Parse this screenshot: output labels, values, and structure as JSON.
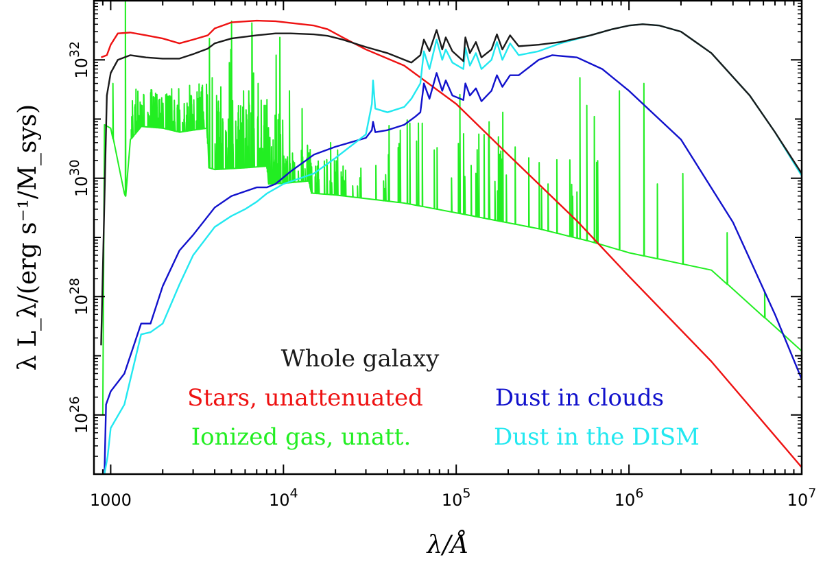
{
  "chart_data": {
    "type": "line",
    "title": "",
    "xlabel": "λ/Å",
    "ylabel": "λ L_λ/(erg s⁻¹/M_sys)",
    "x_scale": "log",
    "y_scale": "log",
    "xlim": [
      800,
      10000000
    ],
    "ylim": [
      1e+25,
      1e+33
    ],
    "grid": false,
    "x_ticks": [
      {
        "value": 1000,
        "base": "1000",
        "exp": ""
      },
      {
        "value": 10000,
        "base": "10",
        "exp": "4"
      },
      {
        "value": 100000,
        "base": "10",
        "exp": "5"
      },
      {
        "value": 1000000,
        "base": "10",
        "exp": "6"
      },
      {
        "value": 10000000,
        "base": "10",
        "exp": "7"
      }
    ],
    "y_ticks": [
      {
        "value": 1e+26,
        "base": "10",
        "exp": "26"
      },
      {
        "value": 1e+28,
        "base": "10",
        "exp": "28"
      },
      {
        "value": 1e+30,
        "base": "10",
        "exp": "30"
      },
      {
        "value": 1e+32,
        "base": "10",
        "exp": "32"
      }
    ],
    "legend": {
      "placement": "bottom-center",
      "entries": [
        {
          "label": "Whole galaxy",
          "color": "#1a1a1a"
        },
        {
          "label": "Stars, unattenuated",
          "color": "#ee1111"
        },
        {
          "label": "Dust in clouds",
          "color": "#1111cc"
        },
        {
          "label": "Ionized gas, unatt.",
          "color": "#22ee22"
        },
        {
          "label": "Dust in the DISM",
          "color": "#22e8f0"
        }
      ]
    },
    "series": [
      {
        "color": "#ee1111",
        "points": [
          [
            880,
            1.1e+32
          ],
          [
            950,
            1.2e+32
          ],
          [
            1000,
            1.8e+32
          ],
          [
            1100,
            2.8e+32
          ],
          [
            1300,
            2.9e+32
          ],
          [
            1600,
            2.6e+32
          ],
          [
            2000,
            2.3e+32
          ],
          [
            2500,
            1.9e+32
          ],
          [
            3000,
            2.2e+32
          ],
          [
            3650,
            2.6e+32
          ],
          [
            4000,
            3.4e+32
          ],
          [
            5000,
            4.3e+32
          ],
          [
            7000,
            4.6e+32
          ],
          [
            9000,
            4.5e+32
          ],
          [
            11000,
            4.2e+32
          ],
          [
            15000,
            3.8e+32
          ],
          [
            18000,
            3.3e+32
          ],
          [
            22000,
            2.4e+32
          ],
          [
            30000,
            1.5e+32
          ],
          [
            50000,
            8e+31
          ],
          [
            100000,
            1.8e+31
          ],
          [
            200000,
            2.5e+30
          ],
          [
            500000,
            1.9e+29
          ],
          [
            1000000,
            2.2e+28
          ],
          [
            3000000,
            8e+26
          ],
          [
            10000000,
            1.3e+25
          ]
        ]
      },
      {
        "color": "#1a1a1a",
        "points": [
          [
            880,
            1.5e+27
          ],
          [
            950,
            2.5e+31
          ],
          [
            1000,
            6e+31
          ],
          [
            1100,
            1e+32
          ],
          [
            1300,
            1.2e+32
          ],
          [
            1600,
            1.1e+32
          ],
          [
            2000,
            1.05e+32
          ],
          [
            2500,
            1.05e+32
          ],
          [
            3000,
            1.25e+32
          ],
          [
            3650,
            1.55e+32
          ],
          [
            4000,
            1.9e+32
          ],
          [
            5000,
            2.3e+32
          ],
          [
            7000,
            2.6e+32
          ],
          [
            9000,
            2.8e+32
          ],
          [
            11000,
            2.8e+32
          ],
          [
            15000,
            2.7e+32
          ],
          [
            18000,
            2.55e+32
          ],
          [
            22000,
            2.2e+32
          ],
          [
            30000,
            1.65e+32
          ],
          [
            40000,
            1.3e+32
          ],
          [
            55000,
            9e+31
          ],
          [
            62000,
            1.2e+32
          ],
          [
            65000,
            2.2e+32
          ],
          [
            70000,
            1.4e+32
          ],
          [
            77000,
            3.2e+32
          ],
          [
            83000,
            1.5e+32
          ],
          [
            87000,
            2.4e+32
          ],
          [
            95000,
            1.4e+32
          ],
          [
            110000,
            9.5e+31
          ],
          [
            113000,
            2.4e+32
          ],
          [
            120000,
            1.3e+32
          ],
          [
            130000,
            2e+32
          ],
          [
            140000,
            1.1e+32
          ],
          [
            160000,
            1.5e+32
          ],
          [
            172000,
            2.7e+32
          ],
          [
            185000,
            1.5e+32
          ],
          [
            205000,
            2.6e+32
          ],
          [
            230000,
            1.7e+32
          ],
          [
            300000,
            1.8e+32
          ],
          [
            400000,
            2e+32
          ],
          [
            600000,
            2.6e+32
          ],
          [
            800000,
            3.3e+32
          ],
          [
            1000000,
            3.8e+32
          ],
          [
            1200000,
            4e+32
          ],
          [
            1500000,
            3.8e+32
          ],
          [
            2000000,
            3e+32
          ],
          [
            3000000,
            1.3e+32
          ],
          [
            5000000,
            2.5e+31
          ],
          [
            7000000,
            6e+30
          ],
          [
            10000000,
            1.2e+30
          ]
        ]
      },
      {
        "color": "#22ee22",
        "points": [
          [
            900,
            1e+26
          ],
          [
            920,
            8e+30
          ],
          [
            1000,
            7e+30
          ],
          [
            1200,
            5.5e+29
          ],
          [
            1216,
            5e+29
          ],
          [
            1300,
            4.5e+30
          ],
          [
            1500,
            7.5e+30
          ],
          [
            2000,
            7e+30
          ],
          [
            2500,
            6e+30
          ],
          [
            3000,
            6.5e+30
          ],
          [
            3600,
            7e+30
          ],
          [
            3700,
            1.5e+30
          ],
          [
            4000,
            1.4e+30
          ],
          [
            6000,
            1.5e+30
          ],
          [
            8000,
            1.6e+30
          ],
          [
            8200,
            8e+29
          ],
          [
            10000,
            8.2e+29
          ],
          [
            14000,
            9e+29
          ],
          [
            14500,
            5.6e+29
          ],
          [
            20000,
            5.2e+29
          ],
          [
            50000,
            3.8e+29
          ],
          [
            100000,
            2.6e+29
          ],
          [
            300000,
            1.4e+29
          ],
          [
            600000,
            8.5e+28
          ],
          [
            1000000,
            5.5e+28
          ],
          [
            3000000,
            2.8e+28
          ],
          [
            10000000,
            1.2e+27
          ]
        ],
        "lines": [
          [
            1216,
            3e+33
          ],
          [
            1030,
            4e+31
          ],
          [
            1400,
            1.6e+31
          ],
          [
            1550,
            2.6e+31
          ],
          [
            1640,
            1.3e+31
          ],
          [
            1900,
            2.1e+31
          ],
          [
            2330,
            1.4e+31
          ],
          [
            2800,
            1.6e+31
          ],
          [
            3727,
            2.3e+32
          ],
          [
            3870,
            5e+31
          ],
          [
            4102,
            2.5e+31
          ],
          [
            4340,
            3.5e+31
          ],
          [
            4861,
            9e+31
          ],
          [
            4959,
            1.5e+32
          ],
          [
            5007,
            4.5e+32
          ],
          [
            5876,
            3e+31
          ],
          [
            6300,
            3e+31
          ],
          [
            6563,
            4.2e+32
          ],
          [
            6584,
            3e+32
          ],
          [
            6717,
            6e+31
          ],
          [
            7136,
            4e+31
          ],
          [
            9069,
            1.2e+32
          ],
          [
            9532,
            2.4e+32
          ],
          [
            10830,
            3e+31
          ],
          [
            12820,
            1.5e+31
          ],
          [
            18750,
            4e+30
          ],
          [
            20580,
            3e+30
          ],
          [
            40510,
            2.5e+30
          ],
          [
            74600,
            3e+30
          ],
          [
            105000,
            2.6e+31
          ],
          [
            155000,
            9e+30
          ],
          [
            186000,
            1.3e+31
          ],
          [
            340000,
            8e+29
          ],
          [
            520000,
            5e+31
          ],
          [
            570000,
            1.7e+31
          ],
          [
            630000,
            1.1e+31
          ],
          [
            880000,
            3e+31
          ],
          [
            1220000,
            4e+31
          ],
          [
            1460000,
            8e+29
          ],
          [
            2050000,
            1.2e+30
          ],
          [
            3700000,
            1.2e+29
          ],
          [
            6100000,
            1.2e+28
          ]
        ],
        "forest": [
          {
            "from": 1300,
            "to": 3650,
            "count": 110,
            "peak_min": 1.4,
            "peak_max": 6
          },
          {
            "from": 4000,
            "to": 10000,
            "count": 90,
            "peak_min": 2,
            "peak_max": 15
          },
          {
            "from": 10000,
            "to": 14500,
            "count": 30,
            "peak_min": 1.5,
            "peak_max": 6
          },
          {
            "from": 14500,
            "to": 40000,
            "count": 35,
            "peak_min": 1.5,
            "peak_max": 4
          },
          {
            "from": 40000,
            "to": 200000,
            "count": 30,
            "peak_min": 3,
            "peak_max": 30
          },
          {
            "from": 200000,
            "to": 700000,
            "count": 12,
            "peak_min": 3,
            "peak_max": 30
          }
        ]
      },
      {
        "color": "#1111cc",
        "points": [
          [
            920,
            1e+25
          ],
          [
            940,
            1.5e+26
          ],
          [
            1000,
            2.5e+26
          ],
          [
            1200,
            5e+26
          ],
          [
            1500,
            3.5e+27
          ],
          [
            1700,
            3.5e+27
          ],
          [
            2000,
            1.5e+28
          ],
          [
            2500,
            6e+28
          ],
          [
            3000,
            1.1e+29
          ],
          [
            4000,
            3.2e+29
          ],
          [
            5000,
            5e+29
          ],
          [
            6000,
            6e+29
          ],
          [
            7000,
            7e+29
          ],
          [
            8000,
            7e+29
          ],
          [
            9000,
            8e+29
          ],
          [
            11000,
            1.3e+30
          ],
          [
            15000,
            2.5e+30
          ],
          [
            20000,
            3.4e+30
          ],
          [
            30000,
            4.8e+30
          ],
          [
            32500,
            6.5e+30
          ],
          [
            33000,
            9e+30
          ],
          [
            34000,
            6e+30
          ],
          [
            40000,
            6.5e+30
          ],
          [
            50000,
            8e+30
          ],
          [
            58000,
            1.1e+31
          ],
          [
            62000,
            1.3e+31
          ],
          [
            65000,
            4e+31
          ],
          [
            70000,
            2.2e+31
          ],
          [
            77000,
            6e+31
          ],
          [
            83000,
            3e+31
          ],
          [
            87000,
            4.5e+31
          ],
          [
            95000,
            2.5e+31
          ],
          [
            110000,
            2.1e+31
          ],
          [
            113000,
            4e+31
          ],
          [
            120000,
            2.5e+31
          ],
          [
            130000,
            3.3e+31
          ],
          [
            140000,
            2e+31
          ],
          [
            160000,
            3e+31
          ],
          [
            172000,
            5.5e+31
          ],
          [
            185000,
            3.5e+31
          ],
          [
            205000,
            5.5e+31
          ],
          [
            230000,
            5.5e+31
          ],
          [
            300000,
            1e+32
          ],
          [
            360000,
            1.2e+32
          ],
          [
            500000,
            1.1e+32
          ],
          [
            700000,
            7e+31
          ],
          [
            1000000,
            3e+31
          ],
          [
            2000000,
            4.5e+30
          ],
          [
            4000000,
            1.8e+29
          ],
          [
            7000000,
            5e+27
          ],
          [
            10000000,
            4e+26
          ]
        ]
      },
      {
        "color": "#22e8f0",
        "points": [
          [
            920,
            1e+25
          ],
          [
            960,
            2e+25
          ],
          [
            1000,
            6e+25
          ],
          [
            1200,
            1.5e+26
          ],
          [
            1500,
            2.3e+27
          ],
          [
            1700,
            2.5e+27
          ],
          [
            2000,
            3.5e+27
          ],
          [
            2500,
            1.6e+28
          ],
          [
            3000,
            5e+28
          ],
          [
            4000,
            1.5e+29
          ],
          [
            5000,
            2.3e+29
          ],
          [
            6000,
            3e+29
          ],
          [
            7000,
            4e+29
          ],
          [
            8000,
            5.5e+29
          ],
          [
            10000,
            8e+29
          ],
          [
            15000,
            1.2e+30
          ],
          [
            20000,
            2.2e+30
          ],
          [
            30000,
            5.5e+30
          ],
          [
            32500,
            1.8e+31
          ],
          [
            33000,
            4.5e+31
          ],
          [
            34000,
            1.5e+31
          ],
          [
            40000,
            1.3e+31
          ],
          [
            50000,
            1.6e+31
          ],
          [
            55000,
            2.2e+31
          ],
          [
            62000,
            4e+31
          ],
          [
            65000,
            1.4e+32
          ],
          [
            70000,
            7e+31
          ],
          [
            77000,
            2.2e+32
          ],
          [
            83000,
            1e+32
          ],
          [
            87000,
            1.5e+32
          ],
          [
            95000,
            9e+31
          ],
          [
            110000,
            7e+31
          ],
          [
            113000,
            1.6e+32
          ],
          [
            120000,
            8e+31
          ],
          [
            130000,
            1.3e+32
          ],
          [
            140000,
            7e+31
          ],
          [
            160000,
            1e+32
          ],
          [
            172000,
            2e+32
          ],
          [
            185000,
            1e+32
          ],
          [
            205000,
            1.9e+32
          ],
          [
            230000,
            1.2e+32
          ],
          [
            300000,
            1.4e+32
          ],
          [
            400000,
            1.9e+32
          ],
          [
            600000,
            2.6e+32
          ],
          [
            800000,
            3.3e+32
          ],
          [
            1000000,
            3.8e+32
          ],
          [
            1200000,
            4e+32
          ],
          [
            1500000,
            3.8e+32
          ],
          [
            2000000,
            3e+32
          ],
          [
            3000000,
            1.3e+32
          ],
          [
            5000000,
            2.5e+31
          ],
          [
            7000000,
            6e+30
          ],
          [
            10000000,
            1.1e+30
          ]
        ]
      }
    ]
  }
}
